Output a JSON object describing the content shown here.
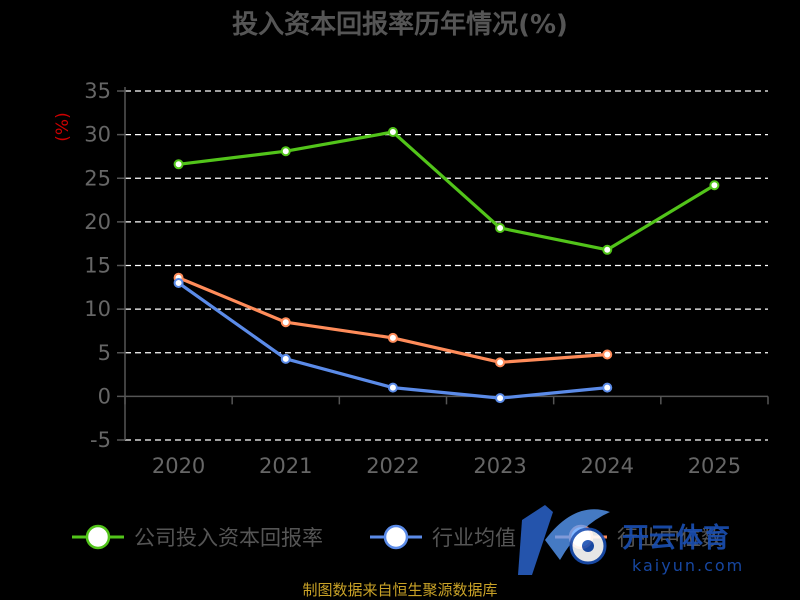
{
  "title": "投入资本回报率历年情况(%)",
  "unit": "(%)",
  "source": "制图数据来自恒生聚源数据库",
  "watermark": {
    "name": "开云体育",
    "domain": "kaiyun.com"
  },
  "colors": {
    "company": "#52c41a",
    "industry_avg": "#5b8be8",
    "industry_median": "#ff8c5a",
    "grid": "#ffffff",
    "axis": "#555555"
  },
  "chart_data": {
    "type": "line",
    "title": "投入资本回报率历年情况(%)",
    "ylabel": "(%)",
    "categories": [
      "2020",
      "2021",
      "2022",
      "2023",
      "2024",
      "2025"
    ],
    "yticks": [
      35,
      30,
      25,
      20,
      15,
      10,
      5,
      0,
      -5
    ],
    "ylim": [
      -5,
      35
    ],
    "grid": true,
    "legend_position": "bottom",
    "series": [
      {
        "name": "公司投入资本回报率",
        "color": "#52c41a",
        "values": [
          26.6,
          28.1,
          30.3,
          19.3,
          16.8,
          24.2
        ]
      },
      {
        "name": "行业均值",
        "color": "#5b8be8",
        "values": [
          13.0,
          4.3,
          1.0,
          -0.2,
          1.0,
          null
        ]
      },
      {
        "name": "行业中位数",
        "color": "#ff8c5a",
        "values": [
          13.6,
          8.5,
          6.7,
          3.9,
          4.8,
          null
        ]
      }
    ]
  }
}
